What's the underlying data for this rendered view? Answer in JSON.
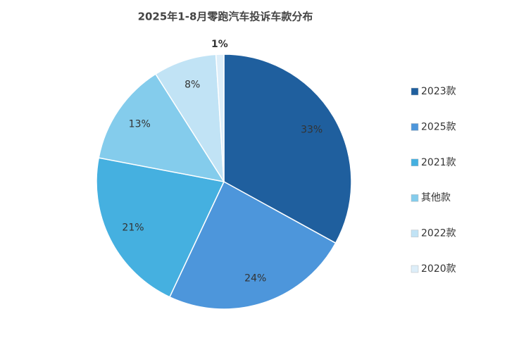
{
  "chart_data": {
    "type": "pie",
    "title": "2025年1-8月零跑汽车投诉车款分布",
    "categories": [
      "2023款",
      "2025款",
      "2021款",
      "其他款",
      "2022款",
      "2020款"
    ],
    "values": [
      33,
      24,
      21,
      13,
      8,
      1
    ],
    "value_labels": [
      "33%",
      "24%",
      "21%",
      "13%",
      "8%",
      "1%"
    ],
    "colors": [
      "#1f5f9e",
      "#4d96db",
      "#45b0e0",
      "#84ccec",
      "#c1e3f5",
      "#ddeef9"
    ],
    "legend": "right"
  }
}
